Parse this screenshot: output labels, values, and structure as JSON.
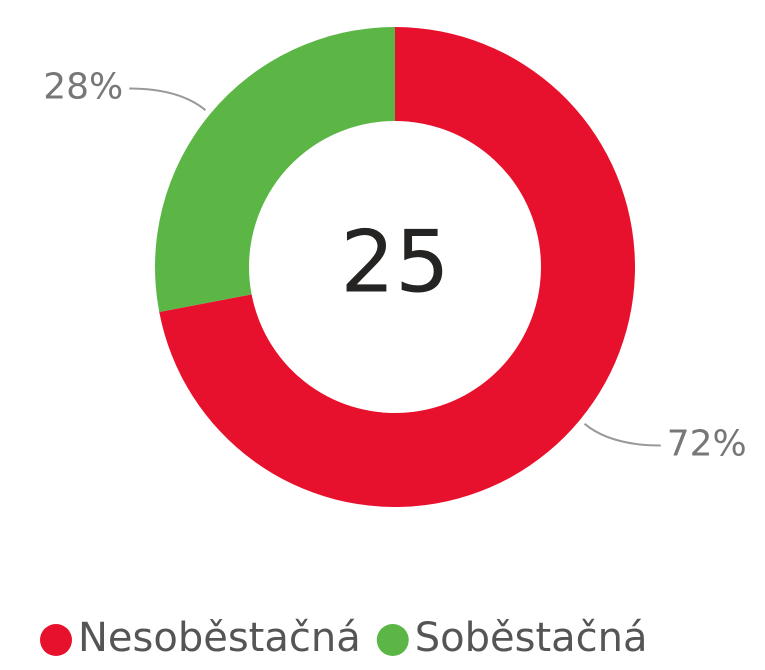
{
  "chart_data": {
    "type": "donut",
    "categories": [
      "Nesoběstačná",
      "Soběstačná"
    ],
    "values": [
      72,
      28
    ],
    "value_labels": [
      "72%",
      "28%"
    ],
    "colors": [
      "#e8112d",
      "#5cb646"
    ],
    "center_label": "25",
    "legend": "bottom"
  }
}
